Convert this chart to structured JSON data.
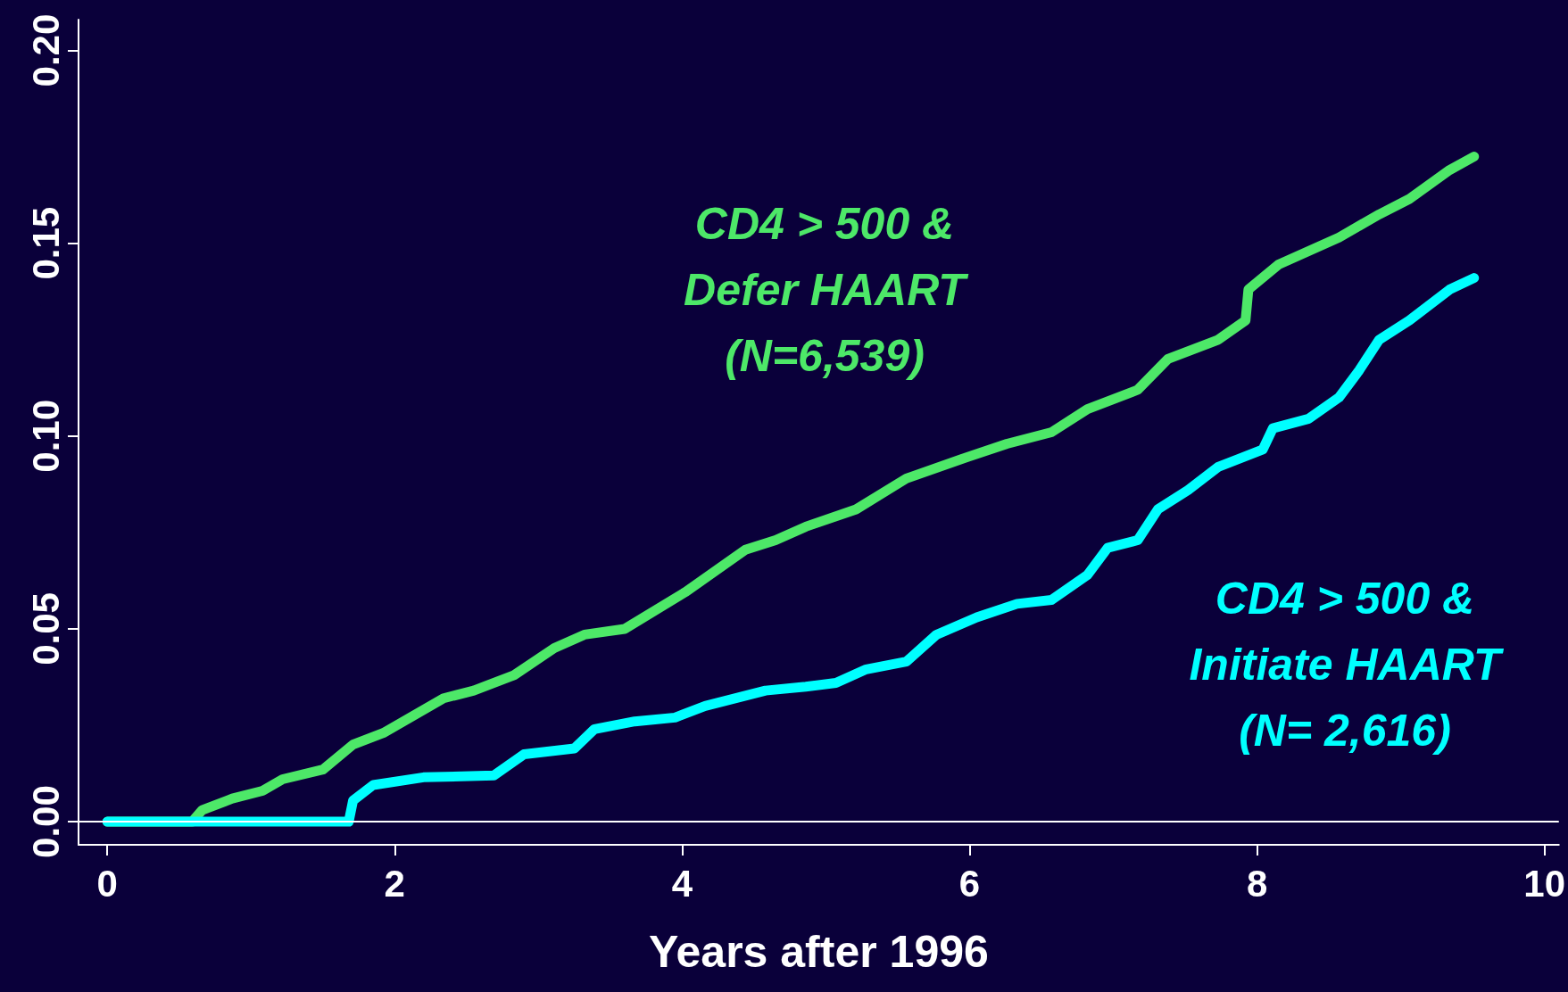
{
  "chart_data": {
    "type": "line",
    "xlabel": "Years after 1996",
    "xlim": [
      -0.2,
      10.1
    ],
    "xticks": [
      0,
      2,
      4,
      6,
      8,
      10
    ],
    "ylim": [
      -0.006,
      0.208
    ],
    "yticks": [
      {
        "value": 0,
        "label": "0.00"
      },
      {
        "value": 0.05,
        "label": "0.05"
      },
      {
        "value": 0.1,
        "label": "0.10"
      },
      {
        "value": 0.15,
        "label": "0.15"
      },
      {
        "value": 0.2,
        "label": "0.20"
      }
    ],
    "grid": false,
    "legend": false,
    "line_style": "solid",
    "ref_lines": [
      {
        "axis": "y",
        "value": 0,
        "color": "#ffffff"
      }
    ],
    "series": [
      {
        "name": "CD4 > 500 &\nDefer HAART\n(N=6,539)",
        "color": "#4de868",
        "x": [
          0,
          0.59,
          0.66,
          0.87,
          1.08,
          1.22,
          1.5,
          1.71,
          1.92,
          2.13,
          2.34,
          2.55,
          2.83,
          3.11,
          3.32,
          3.6,
          4.02,
          4.44,
          4.65,
          4.86,
          5.21,
          5.56,
          5.98,
          6.26,
          6.57,
          6.82,
          7.17,
          7.38,
          7.73,
          7.92,
          7.94,
          8.15,
          8.57,
          8.85,
          9.06,
          9.34,
          9.51
        ],
        "values": [
          0,
          0,
          0.003,
          0.006,
          0.008,
          0.011,
          0.0135,
          0.02,
          0.023,
          0.0275,
          0.032,
          0.034,
          0.038,
          0.045,
          0.0485,
          0.05,
          0.0595,
          0.0705,
          0.073,
          0.0765,
          0.081,
          0.089,
          0.0945,
          0.098,
          0.101,
          0.107,
          0.112,
          0.12,
          0.125,
          0.13,
          0.138,
          0.1445,
          0.1515,
          0.1575,
          0.1615,
          0.169,
          0.1725
        ]
      },
      {
        "name": "CD4 > 500 &\nInitiate HAART\n(N= 2,616)",
        "color": "#00ffff",
        "x": [
          0,
          1.68,
          1.71,
          1.85,
          2.2,
          2.69,
          2.9,
          3.25,
          3.39,
          3.67,
          3.95,
          4.16,
          4.58,
          4.86,
          5.07,
          5.28,
          5.56,
          5.77,
          6.05,
          6.33,
          6.57,
          6.82,
          6.96,
          7.17,
          7.31,
          7.52,
          7.73,
          8.04,
          8.11,
          8.36,
          8.57,
          8.71,
          8.85,
          9.06,
          9.34,
          9.51
        ],
        "values": [
          0,
          0,
          0.0055,
          0.0095,
          0.0115,
          0.012,
          0.0175,
          0.019,
          0.024,
          0.026,
          0.027,
          0.03,
          0.034,
          0.035,
          0.036,
          0.0395,
          0.0415,
          0.0485,
          0.053,
          0.0565,
          0.0575,
          0.064,
          0.071,
          0.073,
          0.081,
          0.086,
          0.092,
          0.0965,
          0.102,
          0.1045,
          0.11,
          0.117,
          0.125,
          0.13,
          0.138,
          0.141
        ]
      }
    ]
  }
}
